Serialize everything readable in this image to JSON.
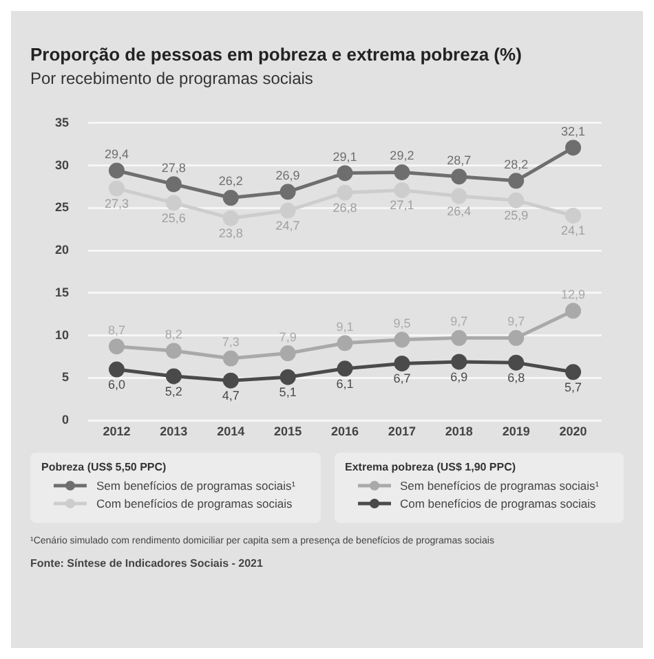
{
  "chart_data": {
    "type": "line",
    "title": "Proporção de pessoas em pobreza e extrema pobreza (%)",
    "subtitle": "Por recebimento de programas sociais",
    "categories": [
      "2012",
      "2013",
      "2014",
      "2015",
      "2016",
      "2017",
      "2018",
      "2019",
      "2020"
    ],
    "series": [
      {
        "name": "Sem benefícios de programas sociais¹",
        "color": "#6e6e6e",
        "values": [
          29.4,
          27.8,
          26.2,
          26.9,
          29.1,
          29.2,
          28.7,
          28.2,
          32.1
        ],
        "value_labels": [
          "29,4",
          "27,8",
          "26,2",
          "26,9",
          "29,1",
          "29,2",
          "28,7",
          "28,2",
          "32,1"
        ]
      },
      {
        "name": "Com benefícios de programas sociais",
        "color": "#cdcdcd",
        "values": [
          27.3,
          25.6,
          23.8,
          24.7,
          26.8,
          27.1,
          26.4,
          25.9,
          24.1
        ],
        "value_labels": [
          "27,3",
          "25,6",
          "23,8",
          "24,7",
          "26,8",
          "27,1",
          "26,4",
          "25,9",
          "24,1"
        ]
      },
      {
        "name": "Sem benefícios de programas sociais¹",
        "color": "#a9a9a9",
        "values": [
          8.7,
          8.2,
          7.3,
          7.9,
          9.1,
          9.5,
          9.7,
          9.7,
          12.9
        ],
        "value_labels": [
          "8,7",
          "8,2",
          "7,3",
          "7,9",
          "9,1",
          "9,5",
          "9,7",
          "9,7",
          "12,9"
        ]
      },
      {
        "name": "Com benefícios de programas sociais",
        "color": "#4a4a4a",
        "values": [
          6.0,
          5.2,
          4.7,
          5.1,
          6.1,
          6.7,
          6.9,
          6.8,
          5.7
        ],
        "value_labels": [
          "6,0",
          "5,2",
          "4,7",
          "5,1",
          "6,1",
          "6,7",
          "6,9",
          "6,8",
          "5,7"
        ]
      }
    ],
    "ylim": [
      0,
      35
    ],
    "yticks": [
      0,
      5,
      10,
      15,
      20,
      25,
      30,
      35
    ],
    "grid": "y",
    "marker": "circle",
    "line_style": "solid",
    "legend": "bottom",
    "annotations": [
      "Pobreza (US$ 5,50 PPC)",
      "Extrema pobreza (US$ 1,90 PPC)",
      "¹Cenário simulado com rendimento domiciliar per capita sem a presença de benefícios de programas sociais",
      "Fonte: Síntese de Indicadores Sociais - 2021"
    ]
  }
}
